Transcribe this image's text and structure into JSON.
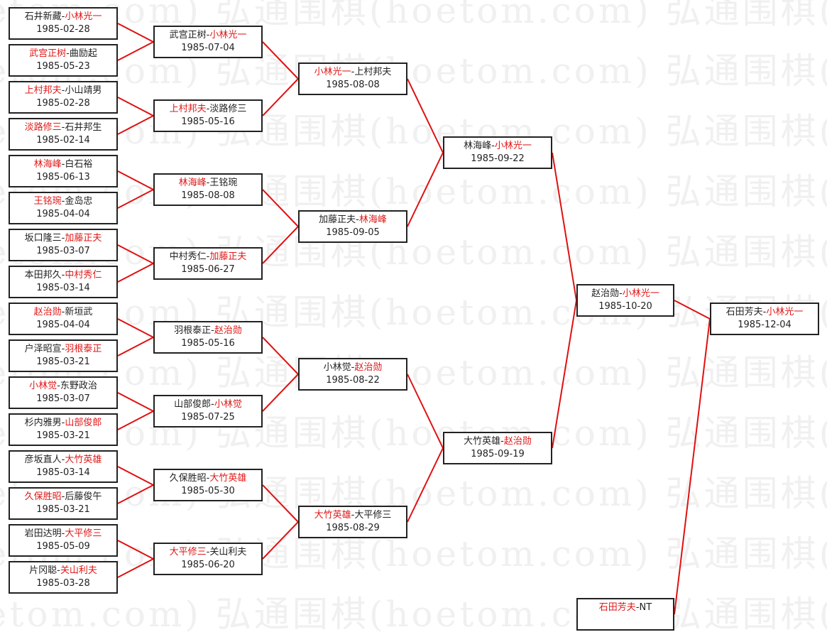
{
  "watermark": "弘通围棋(hoetom.com)",
  "colors": {
    "winner": "#e01818",
    "line": "#e01010",
    "border": "#222222"
  },
  "separator": "-",
  "rounds": [
    [
      {
        "p1": "石井新藏",
        "p2": "小林光一",
        "winner": 2,
        "date": "1985-02-28"
      },
      {
        "p1": "武宫正树",
        "p2": "曲励起",
        "winner": 1,
        "date": "1985-05-23"
      },
      {
        "p1": "上村邦夫",
        "p2": "小山靖男",
        "winner": 1,
        "date": "1985-02-28"
      },
      {
        "p1": "淡路修三",
        "p2": "石井邦生",
        "winner": 1,
        "date": "1985-02-14"
      },
      {
        "p1": "林海峰",
        "p2": "白石裕",
        "winner": 1,
        "date": "1985-06-13"
      },
      {
        "p1": "王铭琬",
        "p2": "金岛忠",
        "winner": 1,
        "date": "1985-04-04"
      },
      {
        "p1": "坂口隆三",
        "p2": "加藤正夫",
        "winner": 2,
        "date": "1985-03-07"
      },
      {
        "p1": "本田邦久",
        "p2": "中村秀仁",
        "winner": 2,
        "date": "1985-03-14"
      },
      {
        "p1": "赵治勋",
        "p2": "新垣武",
        "winner": 1,
        "date": "1985-04-04"
      },
      {
        "p1": "户泽昭宣",
        "p2": "羽根泰正",
        "winner": 2,
        "date": "1985-03-21"
      },
      {
        "p1": "小林觉",
        "p2": "东野政治",
        "winner": 1,
        "date": "1985-03-07"
      },
      {
        "p1": "杉内雅男",
        "p2": "山部俊郎",
        "winner": 2,
        "date": "1985-03-21"
      },
      {
        "p1": "彦坂直人",
        "p2": "大竹英雄",
        "winner": 2,
        "date": "1985-03-14"
      },
      {
        "p1": "久保胜昭",
        "p2": "后藤俊午",
        "winner": 1,
        "date": "1985-03-21"
      },
      {
        "p1": "岩田达明",
        "p2": "大平修三",
        "winner": 2,
        "date": "1985-05-09"
      },
      {
        "p1": "片冈聪",
        "p2": "关山利夫",
        "winner": 2,
        "date": "1985-03-28"
      }
    ],
    [
      {
        "p1": "武宫正树",
        "p2": "小林光一",
        "winner": 2,
        "date": "1985-07-04"
      },
      {
        "p1": "上村邦夫",
        "p2": "淡路修三",
        "winner": 1,
        "date": "1985-05-16"
      },
      {
        "p1": "林海峰",
        "p2": "王铭琬",
        "winner": 1,
        "date": "1985-08-08"
      },
      {
        "p1": "中村秀仁",
        "p2": "加藤正夫",
        "winner": 2,
        "date": "1985-06-27"
      },
      {
        "p1": "羽根泰正",
        "p2": "赵治勋",
        "winner": 2,
        "date": "1985-05-16"
      },
      {
        "p1": "山部俊郎",
        "p2": "小林觉",
        "winner": 2,
        "date": "1985-07-25"
      },
      {
        "p1": "久保胜昭",
        "p2": "大竹英雄",
        "winner": 2,
        "date": "1985-05-30"
      },
      {
        "p1": "大平修三",
        "p2": "关山利夫",
        "winner": 1,
        "date": "1985-06-20"
      }
    ],
    [
      {
        "p1": "小林光一",
        "p2": "上村邦夫",
        "winner": 1,
        "date": "1985-08-08"
      },
      {
        "p1": "加藤正夫",
        "p2": "林海峰",
        "winner": 2,
        "date": "1985-09-05"
      },
      {
        "p1": "小林觉",
        "p2": "赵治勋",
        "winner": 2,
        "date": "1985-08-22"
      },
      {
        "p1": "大竹英雄",
        "p2": "大平修三",
        "winner": 1,
        "date": "1985-08-29"
      }
    ],
    [
      {
        "p1": "林海峰",
        "p2": "小林光一",
        "winner": 2,
        "date": "1985-09-22"
      },
      {
        "p1": "大竹英雄",
        "p2": "赵治勋",
        "winner": 2,
        "date": "1985-09-19"
      }
    ],
    [
      {
        "p1": "赵治勋",
        "p2": "小林光一",
        "winner": 2,
        "date": "1985-10-20"
      }
    ]
  ],
  "seed": {
    "p1": "石田芳夫",
    "p2": "NT",
    "winner": 1,
    "date": ""
  },
  "final": {
    "p1": "石田芳夫",
    "p2": "小林光一",
    "winner": 2,
    "date": "1985-12-04"
  }
}
